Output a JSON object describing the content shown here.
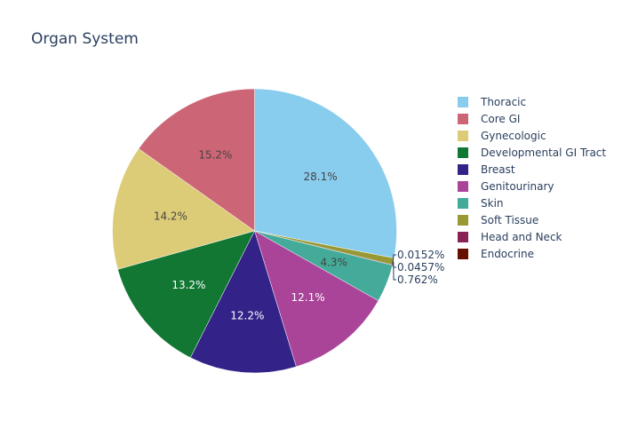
{
  "chart_data": {
    "type": "pie",
    "title": "Organ System",
    "slices": [
      {
        "label": "Thoracic",
        "value": 28.1,
        "text": "28.1%",
        "color": "#88CCEE",
        "text_color": "#444444"
      },
      {
        "label": "Soft Tissue",
        "value": 0.762,
        "text": "0.762%",
        "color": "#999933",
        "text_color": "#444444"
      },
      {
        "label": "Head and Neck",
        "value": 0.0457,
        "text": "0.0457%",
        "color": "#882255",
        "text_color": "#444444"
      },
      {
        "label": "Endocrine",
        "value": 0.0152,
        "text": "0.0152%",
        "color": "#661100",
        "text_color": "#444444"
      },
      {
        "label": "Skin",
        "value": 4.3,
        "text": "4.3%",
        "color": "#44AA99",
        "text_color": "#444444"
      },
      {
        "label": "Genitourinary",
        "value": 12.1,
        "text": "12.1%",
        "color": "#AA4499",
        "text_color": "#ffffff"
      },
      {
        "label": "Breast",
        "value": 12.2,
        "text": "12.2%",
        "color": "#332288",
        "text_color": "#ffffff"
      },
      {
        "label": "Developmental GI Tract",
        "value": 13.2,
        "text": "13.2%",
        "color": "#117733",
        "text_color": "#ffffff"
      },
      {
        "label": "Gynecologic",
        "value": 14.2,
        "text": "14.2%",
        "color": "#DDCC77",
        "text_color": "#444444"
      },
      {
        "label": "Core GI",
        "value": 15.2,
        "text": "15.2%",
        "color": "#CC6677",
        "text_color": "#444444"
      }
    ],
    "legend": [
      "Thoracic",
      "Core GI",
      "Gynecologic",
      "Developmental GI Tract",
      "Breast",
      "Genitourinary",
      "Skin",
      "Soft Tissue",
      "Head and Neck",
      "Endocrine"
    ],
    "legend_position": "right"
  }
}
